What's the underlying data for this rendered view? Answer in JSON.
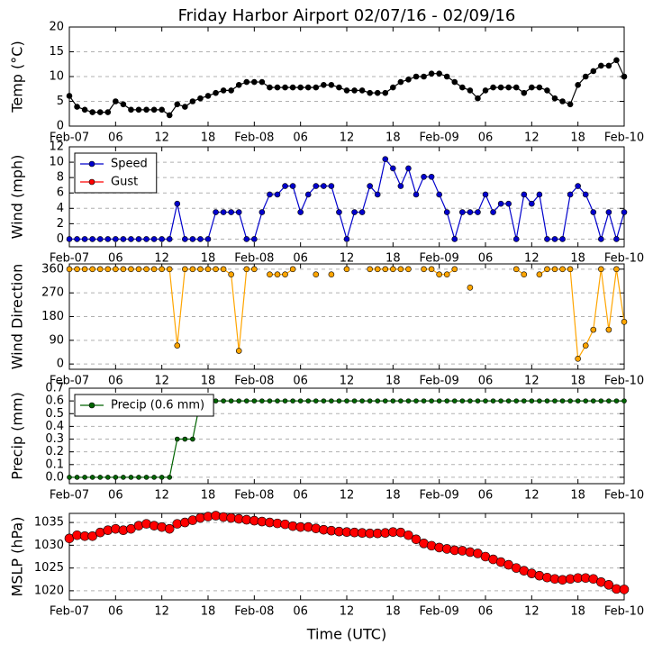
{
  "chart_data": [
    {
      "type": "line",
      "title": "Friday Harbor Airport 02/07/16 - 02/09/16",
      "ylabel": "Temp (°C)",
      "x": [
        0,
        1,
        2,
        3,
        4,
        5,
        6,
        7,
        8,
        9,
        10,
        11,
        12,
        13,
        14,
        15,
        16,
        17,
        18,
        19,
        20,
        21,
        22,
        23,
        24,
        25,
        26,
        27,
        28,
        29,
        30,
        31,
        32,
        33,
        34,
        35,
        36,
        37,
        38,
        39,
        40,
        41,
        42,
        43,
        44,
        45,
        46,
        47,
        48,
        49,
        50,
        51,
        52,
        53,
        54,
        55,
        56,
        57,
        58,
        59,
        60,
        61,
        62,
        63,
        64,
        65,
        66,
        67,
        68,
        69,
        70,
        71,
        72
      ],
      "xlim": [
        0,
        72
      ],
      "xticks": [
        {
          "value": 0,
          "label": "Feb-07"
        },
        {
          "value": 6,
          "label": "06"
        },
        {
          "value": 12,
          "label": "12"
        },
        {
          "value": 18,
          "label": "18"
        },
        {
          "value": 24,
          "label": "Feb-08"
        },
        {
          "value": 30,
          "label": "06"
        },
        {
          "value": 36,
          "label": "12"
        },
        {
          "value": 42,
          "label": "18"
        },
        {
          "value": 48,
          "label": "Feb-09"
        },
        {
          "value": 54,
          "label": "06"
        },
        {
          "value": 60,
          "label": "12"
        },
        {
          "value": 66,
          "label": "18"
        },
        {
          "value": 72,
          "label": "Feb-10"
        }
      ],
      "ylim": [
        0,
        20
      ],
      "yticks": [
        0,
        5,
        10,
        15,
        20
      ],
      "grid": true,
      "series": [
        {
          "color": "#000000",
          "values": [
            6.1,
            3.9,
            3.3,
            2.8,
            2.8,
            2.8,
            5,
            4.4,
            3.3,
            3.3,
            3.3,
            3.3,
            3.3,
            2.2,
            4.4,
            3.9,
            5,
            5.6,
            6.1,
            6.7,
            7.2,
            7.2,
            8.3,
            8.9,
            8.9,
            8.9,
            7.8,
            7.8,
            7.8,
            7.8,
            7.8,
            7.8,
            7.8,
            8.3,
            8.3,
            7.8,
            7.2,
            7.2,
            7.2,
            6.7,
            6.7,
            6.7,
            7.8,
            8.9,
            9.4,
            10,
            10,
            10.6,
            10.6,
            10,
            8.9,
            7.8,
            7.2,
            5.6,
            7.2,
            7.8,
            7.8,
            7.8,
            7.8,
            6.7,
            7.8,
            7.8,
            7.2,
            5.6,
            5,
            4.4,
            8.3,
            10,
            11.1,
            12.2,
            12.2,
            13.3,
            10
          ]
        }
      ]
    },
    {
      "type": "line",
      "ylabel": "Wind (mph)",
      "x": [
        0,
        1,
        2,
        3,
        4,
        5,
        6,
        7,
        8,
        9,
        10,
        11,
        12,
        13,
        14,
        15,
        16,
        17,
        18,
        19,
        20,
        21,
        22,
        23,
        24,
        25,
        26,
        27,
        28,
        29,
        30,
        31,
        32,
        33,
        34,
        35,
        36,
        37,
        38,
        39,
        40,
        41,
        42,
        43,
        44,
        45,
        46,
        47,
        48,
        49,
        50,
        51,
        52,
        53,
        54,
        55,
        56,
        57,
        58,
        59,
        60,
        61,
        62,
        63,
        64,
        65,
        66,
        67,
        68,
        69,
        70,
        71,
        72
      ],
      "xlim": [
        0,
        72
      ],
      "xticks": [
        {
          "value": 0,
          "label": "Feb-07"
        },
        {
          "value": 6,
          "label": "06"
        },
        {
          "value": 12,
          "label": "12"
        },
        {
          "value": 18,
          "label": "18"
        },
        {
          "value": 24,
          "label": "Feb-08"
        },
        {
          "value": 30,
          "label": "06"
        },
        {
          "value": 36,
          "label": "12"
        },
        {
          "value": 42,
          "label": "18"
        },
        {
          "value": 48,
          "label": "Feb-09"
        },
        {
          "value": 54,
          "label": "06"
        },
        {
          "value": 60,
          "label": "12"
        },
        {
          "value": 66,
          "label": "18"
        },
        {
          "value": 72,
          "label": "Feb-10"
        }
      ],
      "ylim": [
        -1,
        12
      ],
      "yticks": [
        0,
        2,
        4,
        6,
        8,
        10,
        12
      ],
      "grid": true,
      "legend": "upper left",
      "series": [
        {
          "name": "Speed",
          "color": "#0000cc",
          "values": [
            0,
            0,
            0,
            0,
            0,
            0,
            0,
            0,
            0,
            0,
            0,
            0,
            0,
            0,
            4.6,
            0,
            0,
            0,
            0,
            3.5,
            3.5,
            3.5,
            3.5,
            0,
            0,
            3.5,
            5.8,
            5.8,
            6.9,
            6.9,
            3.5,
            5.8,
            6.9,
            6.9,
            6.9,
            3.5,
            0,
            3.5,
            3.5,
            6.9,
            5.8,
            10.4,
            9.2,
            6.9,
            9.2,
            5.8,
            8.1,
            8.1,
            5.8,
            3.5,
            0,
            3.5,
            3.5,
            3.5,
            5.8,
            3.5,
            4.6,
            4.6,
            0,
            5.8,
            4.6,
            5.8,
            0,
            0,
            0,
            5.8,
            6.9,
            5.8,
            3.5,
            0,
            3.5,
            0,
            3.5
          ]
        },
        {
          "name": "Gust",
          "color": "#ff0000",
          "values": [
            null,
            null,
            null,
            null,
            null,
            null,
            null,
            null,
            null,
            null,
            null,
            null,
            null,
            null,
            null,
            null,
            null,
            null,
            null,
            null,
            null,
            null,
            null,
            null,
            null,
            null,
            null,
            null,
            null,
            null,
            null,
            null,
            null,
            null,
            null,
            null,
            null,
            null,
            null,
            null,
            null,
            null,
            null,
            null,
            null,
            null,
            null,
            null,
            null,
            null,
            null,
            null,
            null,
            null,
            null,
            null,
            null,
            null,
            null,
            null,
            null,
            null,
            null,
            null,
            null,
            null,
            null,
            null,
            null,
            null,
            null,
            null,
            null
          ]
        }
      ]
    },
    {
      "type": "line",
      "ylabel": "Wind Direction",
      "x": [
        0,
        1,
        2,
        3,
        4,
        5,
        6,
        7,
        8,
        9,
        10,
        11,
        12,
        13,
        14,
        15,
        16,
        17,
        18,
        19,
        20,
        21,
        22,
        23,
        24,
        25,
        26,
        27,
        28,
        29,
        30,
        31,
        32,
        33,
        34,
        35,
        36,
        37,
        38,
        39,
        40,
        41,
        42,
        43,
        44,
        45,
        46,
        47,
        48,
        49,
        50,
        51,
        52,
        53,
        54,
        55,
        56,
        57,
        58,
        59,
        60,
        61,
        62,
        63,
        64,
        65,
        66,
        67,
        68,
        69,
        70,
        71,
        72
      ],
      "xlim": [
        0,
        72
      ],
      "xticks": [
        {
          "value": 0,
          "label": "Feb-07"
        },
        {
          "value": 6,
          "label": "06"
        },
        {
          "value": 12,
          "label": "12"
        },
        {
          "value": 18,
          "label": "18"
        },
        {
          "value": 24,
          "label": "Feb-08"
        },
        {
          "value": 30,
          "label": "06"
        },
        {
          "value": 36,
          "label": "12"
        },
        {
          "value": 42,
          "label": "18"
        },
        {
          "value": 48,
          "label": "Feb-09"
        },
        {
          "value": 54,
          "label": "06"
        },
        {
          "value": 60,
          "label": "12"
        },
        {
          "value": 66,
          "label": "18"
        },
        {
          "value": 72,
          "label": "Feb-10"
        }
      ],
      "ylim": [
        -20,
        380
      ],
      "yticks": [
        0,
        90,
        180,
        270,
        360
      ],
      "grid": true,
      "series": [
        {
          "color": "#ffa500",
          "values": [
            360,
            360,
            360,
            360,
            360,
            360,
            360,
            360,
            360,
            360,
            360,
            360,
            360,
            360,
            70,
            360,
            360,
            360,
            360,
            360,
            360,
            340,
            50,
            360,
            360,
            null,
            340,
            340,
            340,
            360,
            null,
            null,
            340,
            null,
            340,
            null,
            360,
            null,
            null,
            360,
            360,
            360,
            360,
            360,
            360,
            null,
            360,
            360,
            340,
            340,
            360,
            null,
            290,
            null,
            null,
            null,
            null,
            null,
            360,
            340,
            null,
            340,
            360,
            360,
            360,
            360,
            20,
            70,
            130,
            360,
            130,
            360,
            160
          ]
        }
      ]
    },
    {
      "type": "line",
      "ylabel": "Precip (mm)",
      "x": [
        0,
        1,
        2,
        3,
        4,
        5,
        6,
        7,
        8,
        9,
        10,
        11,
        12,
        13,
        14,
        15,
        16,
        17,
        18,
        19,
        20,
        21,
        22,
        23,
        24,
        25,
        26,
        27,
        28,
        29,
        30,
        31,
        32,
        33,
        34,
        35,
        36,
        37,
        38,
        39,
        40,
        41,
        42,
        43,
        44,
        45,
        46,
        47,
        48,
        49,
        50,
        51,
        52,
        53,
        54,
        55,
        56,
        57,
        58,
        59,
        60,
        61,
        62,
        63,
        64,
        65,
        66,
        67,
        68,
        69,
        70,
        71,
        72
      ],
      "xlim": [
        0,
        72
      ],
      "xticks": [
        {
          "value": 0,
          "label": "Feb-07"
        },
        {
          "value": 6,
          "label": "06"
        },
        {
          "value": 12,
          "label": "12"
        },
        {
          "value": 18,
          "label": "18"
        },
        {
          "value": 24,
          "label": "Feb-08"
        },
        {
          "value": 30,
          "label": "06"
        },
        {
          "value": 36,
          "label": "12"
        },
        {
          "value": 42,
          "label": "18"
        },
        {
          "value": 48,
          "label": "Feb-09"
        },
        {
          "value": 54,
          "label": "06"
        },
        {
          "value": 60,
          "label": "12"
        },
        {
          "value": 66,
          "label": "18"
        },
        {
          "value": 72,
          "label": "Feb-10"
        }
      ],
      "ylim": [
        -0.05,
        0.7
      ],
      "yticks": [
        {
          "value": 0,
          "label": "0.0"
        },
        0.1,
        0.2,
        0.3,
        0.4,
        0.5,
        0.6,
        0.7
      ],
      "grid": true,
      "legend": "upper left",
      "series": [
        {
          "name": "Precip (0.6 mm)",
          "color": "#006400",
          "values": [
            0,
            0,
            0,
            0,
            0,
            0,
            0,
            0,
            0,
            0,
            0,
            0,
            0,
            0,
            0.3,
            0.3,
            0.3,
            0.6,
            0.6,
            0.6,
            0.6,
            0.6,
            0.6,
            0.6,
            0.6,
            0.6,
            0.6,
            0.6,
            0.6,
            0.6,
            0.6,
            0.6,
            0.6,
            0.6,
            0.6,
            0.6,
            0.6,
            0.6,
            0.6,
            0.6,
            0.6,
            0.6,
            0.6,
            0.6,
            0.6,
            0.6,
            0.6,
            0.6,
            0.6,
            0.6,
            0.6,
            0.6,
            0.6,
            0.6,
            0.6,
            0.6,
            0.6,
            0.6,
            0.6,
            0.6,
            0.6,
            0.6,
            0.6,
            0.6,
            0.6,
            0.6,
            0.6,
            0.6,
            0.6,
            0.6,
            0.6,
            0.6,
            0.6
          ]
        }
      ]
    },
    {
      "type": "line",
      "ylabel": "MSLP (hPa)",
      "xlabel": "Time (UTC)",
      "x": [
        0,
        1,
        2,
        3,
        4,
        5,
        6,
        7,
        8,
        9,
        10,
        11,
        12,
        13,
        14,
        15,
        16,
        17,
        18,
        19,
        20,
        21,
        22,
        23,
        24,
        25,
        26,
        27,
        28,
        29,
        30,
        31,
        32,
        33,
        34,
        35,
        36,
        37,
        38,
        39,
        40,
        41,
        42,
        43,
        44,
        45,
        46,
        47,
        48,
        49,
        50,
        51,
        52,
        53,
        54,
        55,
        56,
        57,
        58,
        59,
        60,
        61,
        62,
        63,
        64,
        65,
        66,
        67,
        68,
        69,
        70,
        71,
        72
      ],
      "xlim": [
        0,
        72
      ],
      "xticks": [
        {
          "value": 0,
          "label": "Feb-07"
        },
        {
          "value": 6,
          "label": "06"
        },
        {
          "value": 12,
          "label": "12"
        },
        {
          "value": 18,
          "label": "18"
        },
        {
          "value": 24,
          "label": "Feb-08"
        },
        {
          "value": 30,
          "label": "06"
        },
        {
          "value": 36,
          "label": "12"
        },
        {
          "value": 42,
          "label": "18"
        },
        {
          "value": 48,
          "label": "Feb-09"
        },
        {
          "value": 54,
          "label": "06"
        },
        {
          "value": 60,
          "label": "12"
        },
        {
          "value": 66,
          "label": "18"
        },
        {
          "value": 72,
          "label": "Feb-10"
        }
      ],
      "ylim": [
        1018,
        1037
      ],
      "yticks": [
        1020,
        1025,
        1030,
        1035
      ],
      "grid": true,
      "series": [
        {
          "color": "#ff0000",
          "values": [
            1031.5,
            1032.2,
            1032,
            1032,
            1032.8,
            1033.3,
            1033.6,
            1033.3,
            1033.6,
            1034.3,
            1034.7,
            1034.3,
            1034,
            1033.6,
            1034.7,
            1035,
            1035.5,
            1036,
            1036.3,
            1036.5,
            1036.2,
            1036,
            1035.8,
            1035.6,
            1035.4,
            1035.2,
            1035,
            1034.8,
            1034.6,
            1034.2,
            1034,
            1034,
            1033.7,
            1033.4,
            1033.2,
            1033,
            1032.9,
            1032.8,
            1032.7,
            1032.6,
            1032.6,
            1032.7,
            1032.9,
            1032.8,
            1032.2,
            1031.3,
            1030.4,
            1029.9,
            1029.5,
            1029.2,
            1028.9,
            1028.8,
            1028.5,
            1028.2,
            1027.5,
            1026.9,
            1026.3,
            1025.7,
            1025,
            1024.4,
            1023.8,
            1023.3,
            1022.9,
            1022.6,
            1022.4,
            1022.6,
            1022.8,
            1022.8,
            1022.6,
            1021.9,
            1021.3,
            1020.4,
            1020.3
          ]
        }
      ]
    }
  ]
}
